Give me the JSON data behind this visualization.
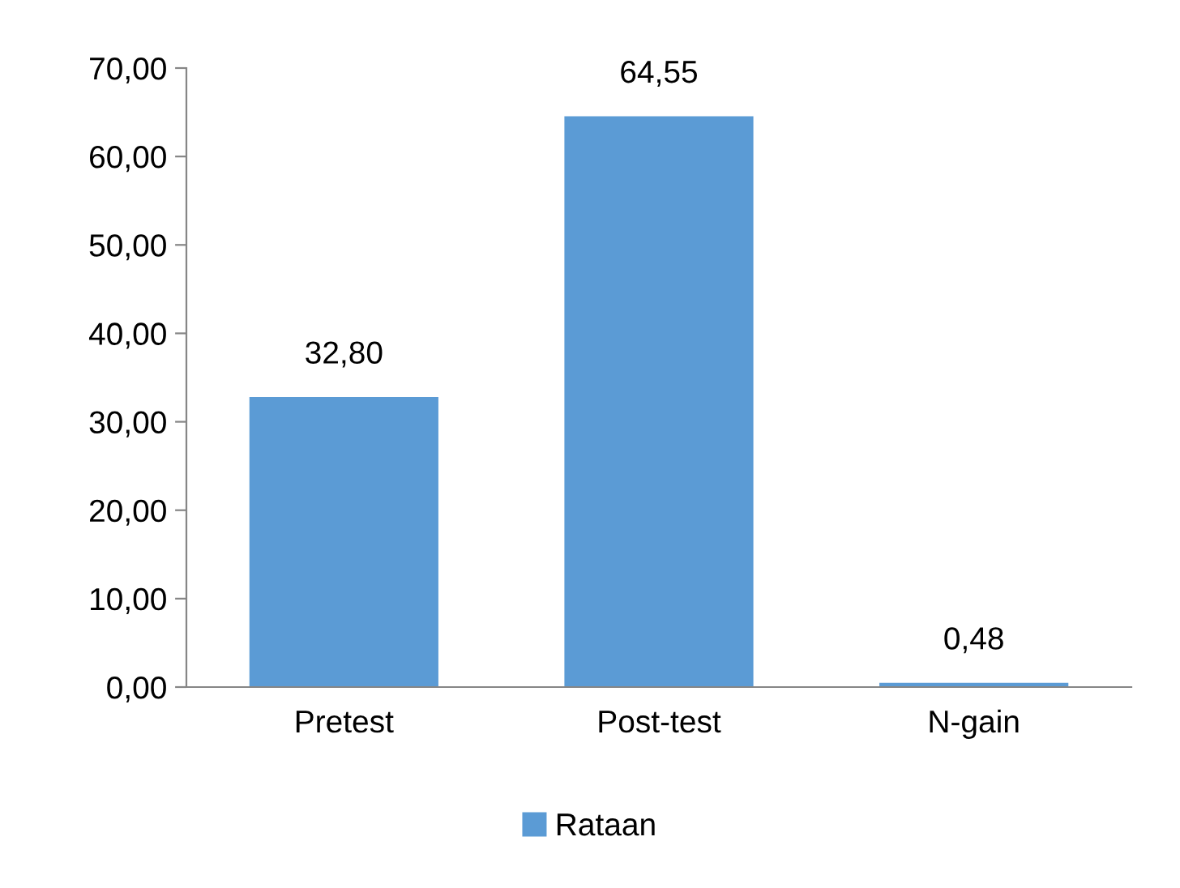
{
  "chart_data": {
    "type": "bar",
    "categories": [
      "Pretest",
      "Post-test",
      "N-gain"
    ],
    "series": [
      {
        "name": "Rataan",
        "color": "#5b9bd5",
        "values": [
          32.8,
          64.55,
          0.48
        ],
        "value_labels": [
          "32,80",
          "64,55",
          "0,48"
        ]
      }
    ],
    "ylim": [
      0,
      70
    ],
    "yticks": [
      {
        "value": 0,
        "label": "0,00"
      },
      {
        "value": 10,
        "label": "10,00"
      },
      {
        "value": 20,
        "label": "20,00"
      },
      {
        "value": 30,
        "label": "30,00"
      },
      {
        "value": 40,
        "label": "40,00"
      },
      {
        "value": 50,
        "label": "50,00"
      },
      {
        "value": 60,
        "label": "60,00"
      },
      {
        "value": 70,
        "label": "70,00"
      }
    ],
    "legend": "bottom",
    "grid": false
  }
}
